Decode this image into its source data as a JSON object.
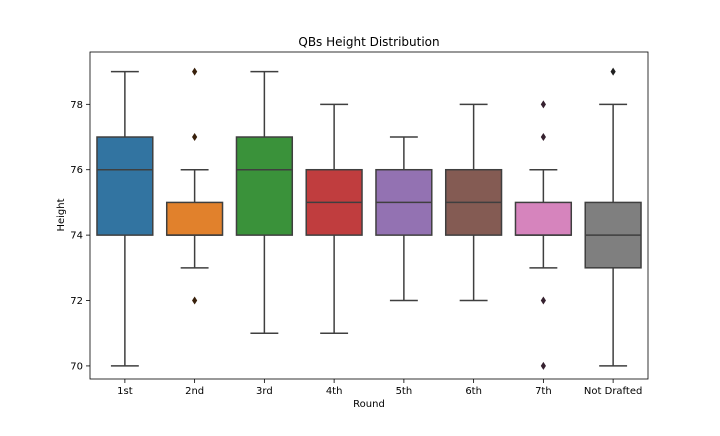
{
  "chart_data": {
    "type": "box",
    "title": "QBs Height Distribution",
    "xlabel": "Round",
    "ylabel": "Height",
    "ylim": [
      69.6,
      79.6
    ],
    "yticks": [
      70,
      72,
      74,
      76,
      78
    ],
    "grid": false,
    "categories": [
      "1st",
      "2nd",
      "3rd",
      "4th",
      "5th",
      "6th",
      "7th",
      "Not Drafted"
    ],
    "colors": [
      "#3274a1",
      "#e1812c",
      "#3a923a",
      "#c03d3e",
      "#9372b2",
      "#845b53",
      "#d684bd",
      "#7f7f7f"
    ],
    "boxes": [
      {
        "whisker_low": 70,
        "q1": 74,
        "median": 76,
        "q3": 77,
        "whisker_high": 79,
        "outliers": []
      },
      {
        "whisker_low": 73,
        "q1": 74,
        "median": 74,
        "q3": 75,
        "whisker_high": 76,
        "outliers": [
          72,
          77,
          79
        ]
      },
      {
        "whisker_low": 71,
        "q1": 74,
        "median": 76,
        "q3": 77,
        "whisker_high": 79,
        "outliers": []
      },
      {
        "whisker_low": 71,
        "q1": 74,
        "median": 75,
        "q3": 76,
        "whisker_high": 78,
        "outliers": []
      },
      {
        "whisker_low": 72,
        "q1": 74,
        "median": 75,
        "q3": 76,
        "whisker_high": 77,
        "outliers": []
      },
      {
        "whisker_low": 72,
        "q1": 74,
        "median": 75,
        "q3": 76,
        "whisker_high": 78,
        "outliers": []
      },
      {
        "whisker_low": 73,
        "q1": 74,
        "median": 74,
        "q3": 75,
        "whisker_high": 76,
        "outliers": [
          70,
          72,
          77,
          78
        ]
      },
      {
        "whisker_low": 70,
        "q1": 73,
        "median": 74,
        "q3": 75,
        "whisker_high": 78,
        "outliers": [
          79
        ]
      }
    ]
  }
}
